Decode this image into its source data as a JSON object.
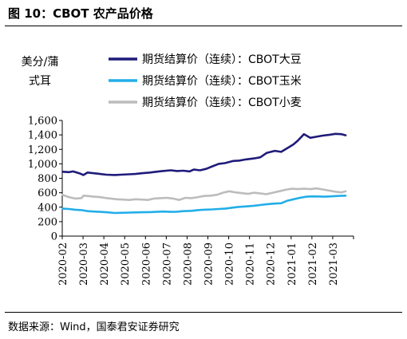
{
  "title": "图 10：CBOT 农产品价格",
  "source": "数据来源：Wind，国泰君安证券研究",
  "colors": {
    "corn": "#1f1b7a",
    "soy": "#22aee8",
    "wheat": "#bcbcbc"
  },
  "chart_data": {
    "type": "line",
    "ylabel": "美分/蒲式耳",
    "ylim": [
      0,
      1600
    ],
    "yticks": [
      0,
      200,
      400,
      600,
      800,
      1000,
      1200,
      1400,
      1600
    ],
    "ytick_labels": [
      "0",
      "200",
      "400",
      "600",
      "800",
      "1,000",
      "1,200",
      "1,400",
      "1,600"
    ],
    "xticks": [
      "2020-02",
      "2020-03",
      "2020-04",
      "2020-05",
      "2020-06",
      "2020-07",
      "2020-08",
      "2020-09",
      "2020-10",
      "2020-11",
      "2020-12",
      "2021-01",
      "2021-02",
      "2021-03"
    ],
    "grid": false,
    "legend_position": "top",
    "series": [
      {
        "name": "期货结算价（连续）：CBOT大豆",
        "color_key": "corn",
        "x": [
          0,
          0.3,
          0.5,
          0.8,
          1.0,
          1.2,
          1.5,
          1.8,
          2.1,
          2.5,
          2.8,
          3.2,
          3.5,
          3.8,
          4.2,
          4.5,
          4.8,
          5.2,
          5.5,
          5.8,
          6.1,
          6.3,
          6.6,
          6.9,
          7.2,
          7.5,
          7.8,
          8.2,
          8.5,
          8.8,
          9.2,
          9.5,
          9.8,
          10.2,
          10.5,
          10.9,
          11.1,
          11.3,
          11.6,
          11.9,
          12.2,
          12.5,
          12.8,
          13.1,
          13.4,
          13.6
        ],
        "y": [
          890,
          885,
          895,
          870,
          845,
          880,
          870,
          860,
          850,
          845,
          850,
          855,
          860,
          870,
          880,
          890,
          900,
          910,
          900,
          905,
          895,
          920,
          910,
          930,
          965,
          1000,
          1010,
          1040,
          1045,
          1060,
          1075,
          1090,
          1150,
          1180,
          1165,
          1235,
          1270,
          1320,
          1410,
          1360,
          1375,
          1390,
          1400,
          1415,
          1410,
          1395
        ]
      },
      {
        "name": "期货结算价（连续）：CBOT玉米",
        "color_key": "soy",
        "x": [
          0,
          0.3,
          0.6,
          0.9,
          1.2,
          1.5,
          1.8,
          2.1,
          2.5,
          2.8,
          3.2,
          3.5,
          3.8,
          4.2,
          4.5,
          4.8,
          5.2,
          5.5,
          5.8,
          6.2,
          6.5,
          6.8,
          7.2,
          7.5,
          7.8,
          8.2,
          8.5,
          8.8,
          9.2,
          9.5,
          9.8,
          10.2,
          10.5,
          10.8,
          11.1,
          11.4,
          11.7,
          12.0,
          12.3,
          12.6,
          12.9,
          13.2,
          13.6
        ],
        "y": [
          380,
          375,
          365,
          360,
          345,
          340,
          335,
          330,
          320,
          322,
          325,
          328,
          330,
          332,
          335,
          340,
          335,
          338,
          345,
          350,
          360,
          365,
          370,
          375,
          380,
          395,
          405,
          410,
          420,
          430,
          440,
          450,
          455,
          490,
          510,
          530,
          545,
          550,
          548,
          545,
          550,
          555,
          560
        ]
      },
      {
        "name": "期货结算价（连续）：CBOT小麦",
        "color_key": "wheat",
        "x": [
          0,
          0.3,
          0.6,
          0.9,
          1.0,
          1.2,
          1.5,
          1.8,
          2.0,
          2.3,
          2.6,
          2.9,
          3.2,
          3.5,
          3.8,
          4.1,
          4.4,
          4.7,
          5.0,
          5.3,
          5.6,
          5.9,
          6.2,
          6.5,
          6.8,
          7.1,
          7.4,
          7.7,
          8.0,
          8.3,
          8.6,
          8.9,
          9.2,
          9.5,
          9.8,
          10.1,
          10.4,
          10.7,
          11.0,
          11.3,
          11.6,
          11.9,
          12.2,
          12.5,
          12.8,
          13.1,
          13.4,
          13.6
        ],
        "y": [
          570,
          540,
          520,
          525,
          560,
          555,
          545,
          540,
          530,
          520,
          510,
          505,
          500,
          510,
          505,
          500,
          520,
          525,
          530,
          520,
          500,
          530,
          525,
          540,
          555,
          560,
          570,
          600,
          620,
          605,
          595,
          585,
          600,
          590,
          580,
          600,
          620,
          640,
          655,
          650,
          655,
          650,
          660,
          645,
          630,
          615,
          605,
          620
        ]
      }
    ]
  }
}
